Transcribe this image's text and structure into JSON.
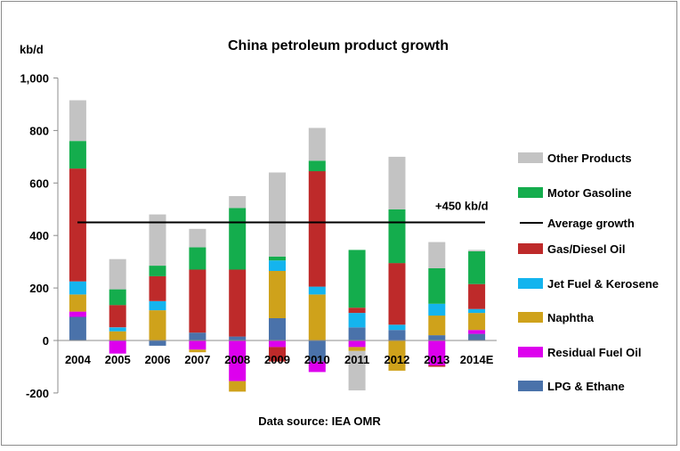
{
  "chart_data": {
    "type": "bar",
    "stacked": true,
    "title": "China petroleum product growth",
    "ylabel": "kb/d",
    "xlabel": "",
    "source": "Data source: IEA OMR",
    "ylim": [
      -200,
      1000
    ],
    "yticks": [
      -200,
      0,
      200,
      400,
      600,
      800,
      1000
    ],
    "ytick_labels": [
      "-200",
      "0",
      "200",
      "400",
      "600",
      "800",
      "1,000"
    ],
    "categories": [
      "2004",
      "2005",
      "2006",
      "2007",
      "2008",
      "2009",
      "2010",
      "2011",
      "2012",
      "2013",
      "2014E"
    ],
    "grid": false,
    "legend_position": "right",
    "average_line": {
      "value": 450,
      "label": "Average growth",
      "annotation": "+450 kb/d"
    },
    "series": [
      {
        "name": "LPG & Ethane",
        "color": "#4a72aa",
        "values": [
          90,
          0,
          -20,
          30,
          15,
          85,
          -80,
          50,
          40,
          20,
          25
        ]
      },
      {
        "name": "Residual Fuel Oil",
        "color": "#dd00ee",
        "values": [
          20,
          -50,
          0,
          -35,
          -155,
          -25,
          -40,
          -25,
          0,
          -95,
          15
        ]
      },
      {
        "name": "Naphtha",
        "color": "#cfa21b",
        "values": [
          65,
          35,
          115,
          -10,
          -40,
          180,
          175,
          -15,
          -115,
          75,
          65
        ]
      },
      {
        "name": "Jet Fuel & Kerosene",
        "color": "#14b4ee",
        "values": [
          50,
          15,
          35,
          0,
          0,
          40,
          30,
          55,
          20,
          45,
          15
        ]
      },
      {
        "name": "Gas/Diesel Oil",
        "color": "#be2a2a",
        "values": [
          430,
          85,
          95,
          240,
          255,
          -55,
          440,
          20,
          235,
          -5,
          95
        ]
      },
      {
        "name": "Motor Gasoline",
        "color": "#14ad4d",
        "values": [
          105,
          60,
          40,
          85,
          235,
          15,
          40,
          220,
          205,
          135,
          125
        ]
      },
      {
        "name": "Other Products",
        "color": "#c3c3c3",
        "values": [
          155,
          115,
          195,
          70,
          45,
          320,
          125,
          -150,
          200,
          100,
          5
        ]
      }
    ],
    "legend": [
      "Other Products",
      "Motor Gasoline",
      "Average growth",
      "Gas/Diesel Oil",
      "Jet Fuel & Kerosene",
      "Naphtha",
      "Residual Fuel Oil",
      "LPG & Ethane"
    ]
  }
}
